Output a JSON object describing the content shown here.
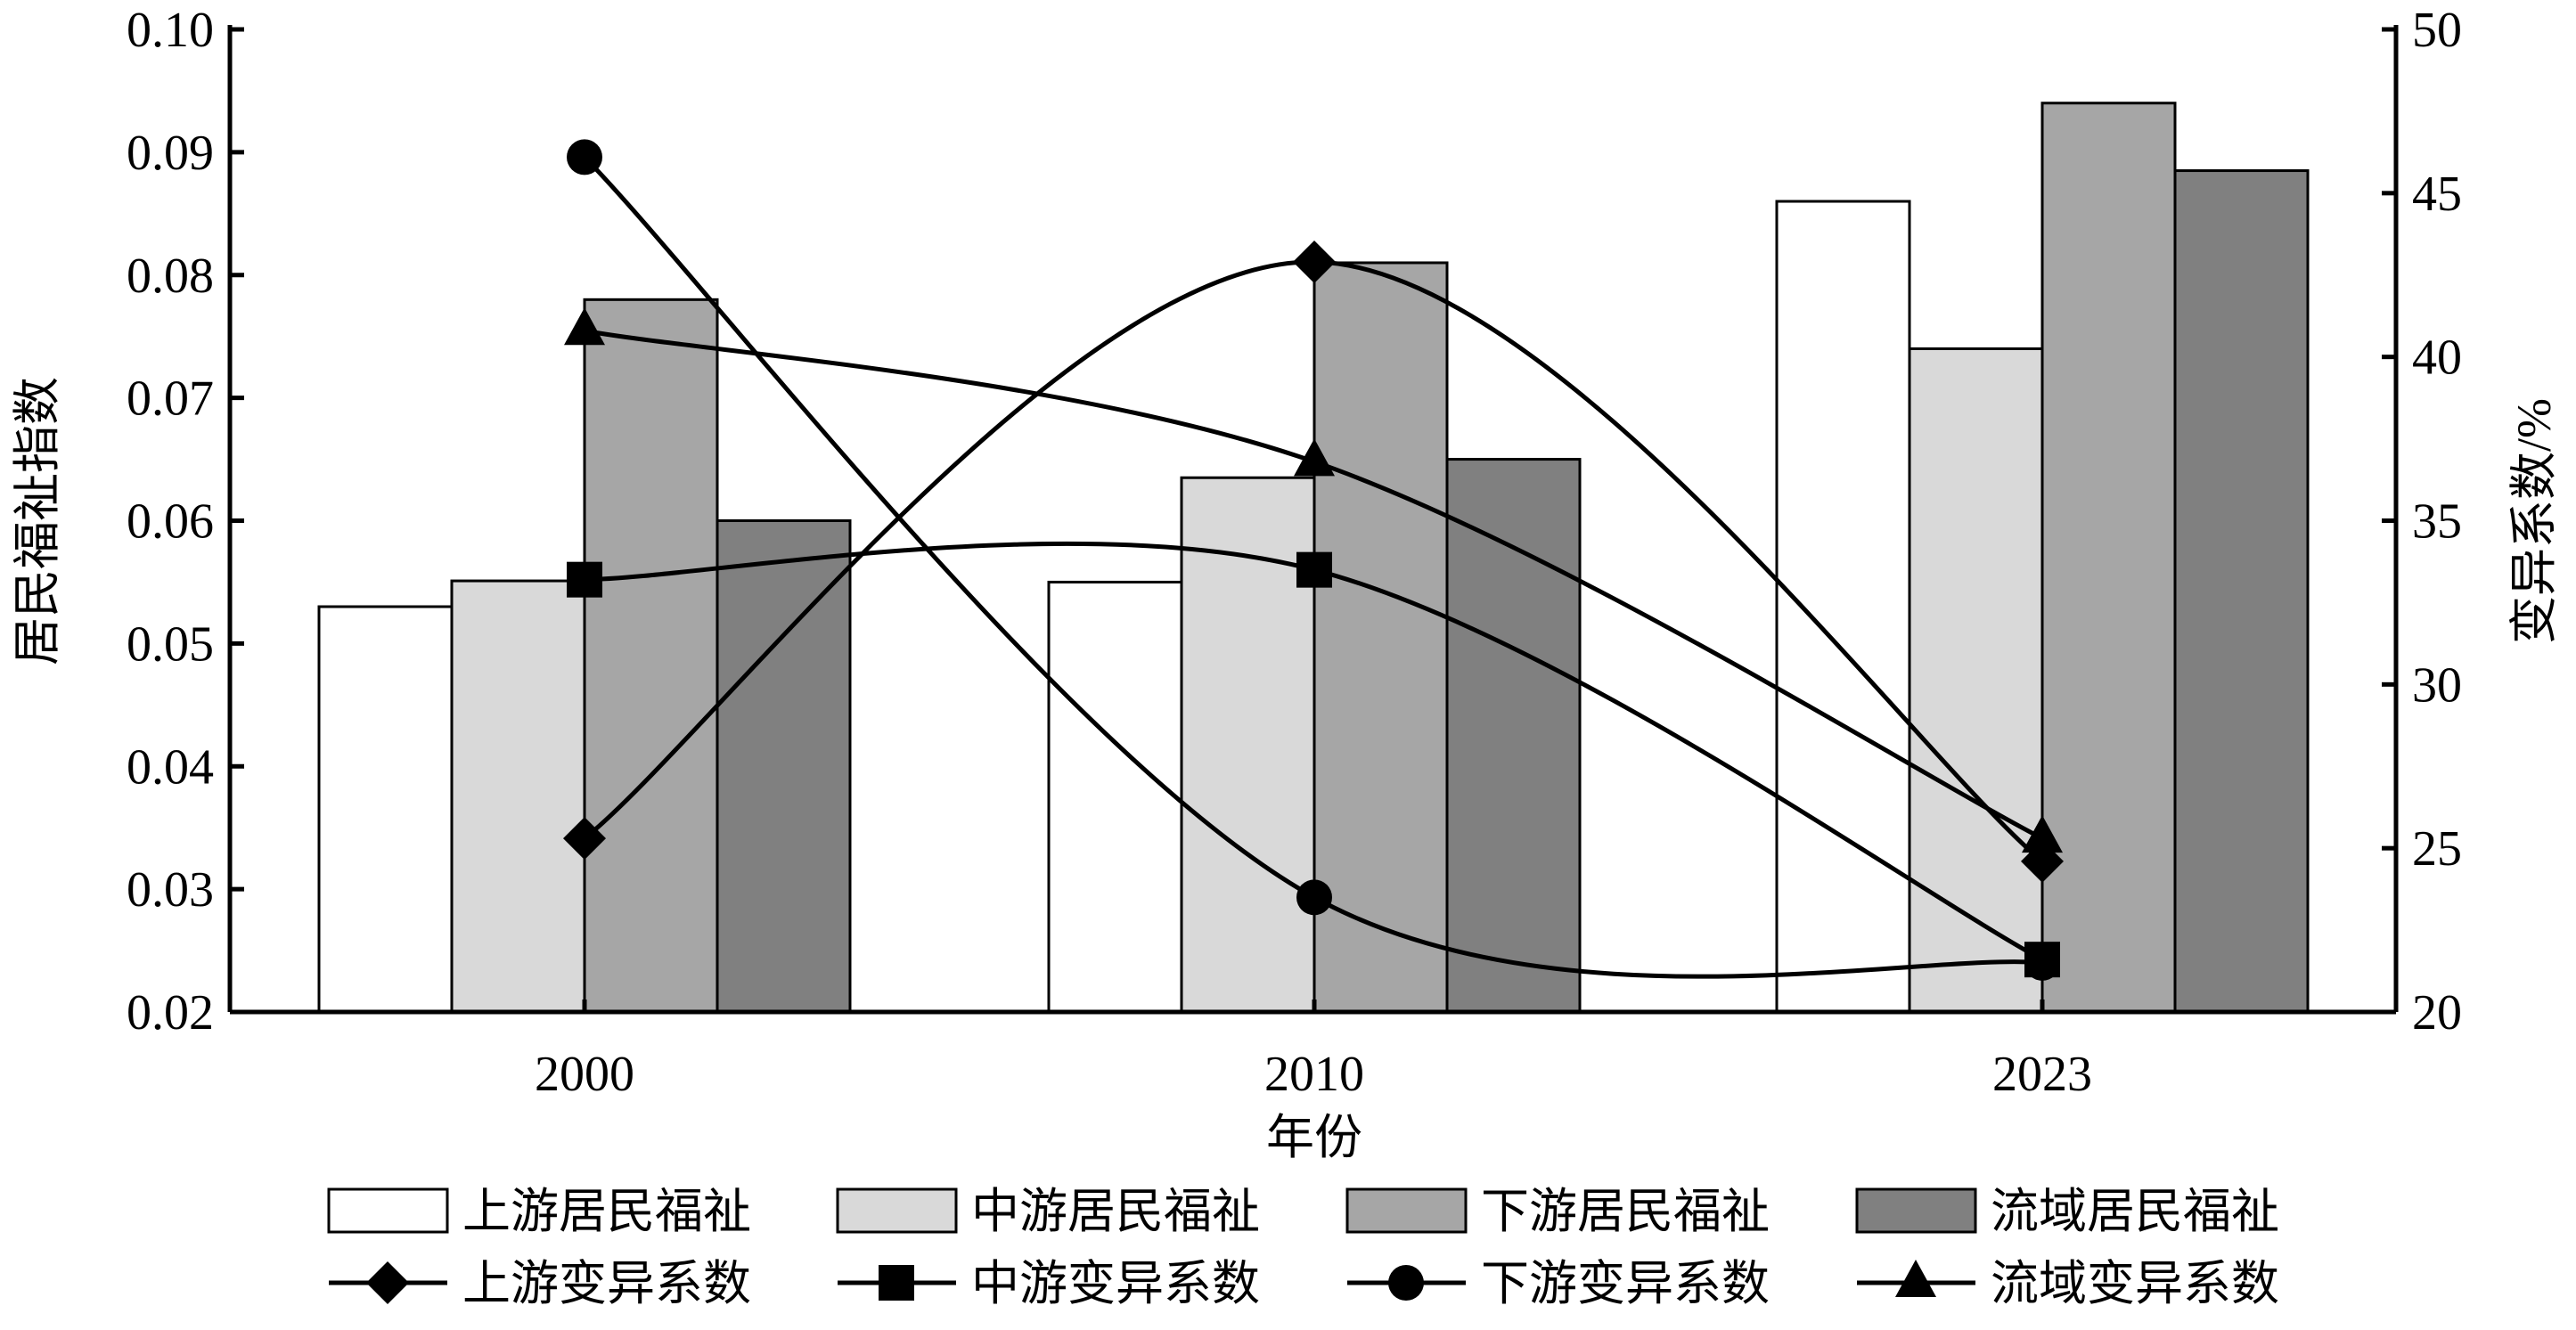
{
  "chart_data": {
    "type": "bar+line",
    "categories": [
      "2000",
      "2010",
      "2023"
    ],
    "xlabel": "年份",
    "ylabel": "居民福祉指数",
    "y2label": "变异系数/%",
    "ylim": [
      0.02,
      0.1
    ],
    "yticks": [
      "0.02",
      "0.03",
      "0.04",
      "0.05",
      "0.06",
      "0.07",
      "0.08",
      "0.09",
      "0.10"
    ],
    "y2lim": [
      20,
      50
    ],
    "y2ticks": [
      "20",
      "25",
      "30",
      "35",
      "40",
      "45",
      "50"
    ],
    "grid": false,
    "legend_position": "bottom",
    "bar_series": [
      {
        "name": "上游居民福祉",
        "color": "#ffffff",
        "values": [
          0.053,
          0.055,
          0.086
        ]
      },
      {
        "name": "中游居民福祉",
        "color": "#d9d9d9",
        "values": [
          0.0551,
          0.0635,
          0.074
        ]
      },
      {
        "name": "下游居民福祉",
        "color": "#a6a6a6",
        "values": [
          0.078,
          0.081,
          0.094
        ]
      },
      {
        "name": "流域居民福祉",
        "color": "#808080",
        "values": [
          0.06,
          0.065,
          0.0885
        ]
      }
    ],
    "line_series": [
      {
        "name": "上游变异系数",
        "marker": "diamond",
        "values": [
          25.3,
          42.9,
          24.6
        ]
      },
      {
        "name": "中游变异系数",
        "marker": "square",
        "values": [
          33.2,
          33.5,
          21.6
        ]
      },
      {
        "name": "下游变异系数",
        "marker": "circle",
        "values": [
          46.1,
          23.5,
          21.5
        ]
      },
      {
        "name": "流域变异系数",
        "marker": "triangle",
        "values": [
          40.8,
          36.8,
          25.3
        ]
      }
    ]
  }
}
